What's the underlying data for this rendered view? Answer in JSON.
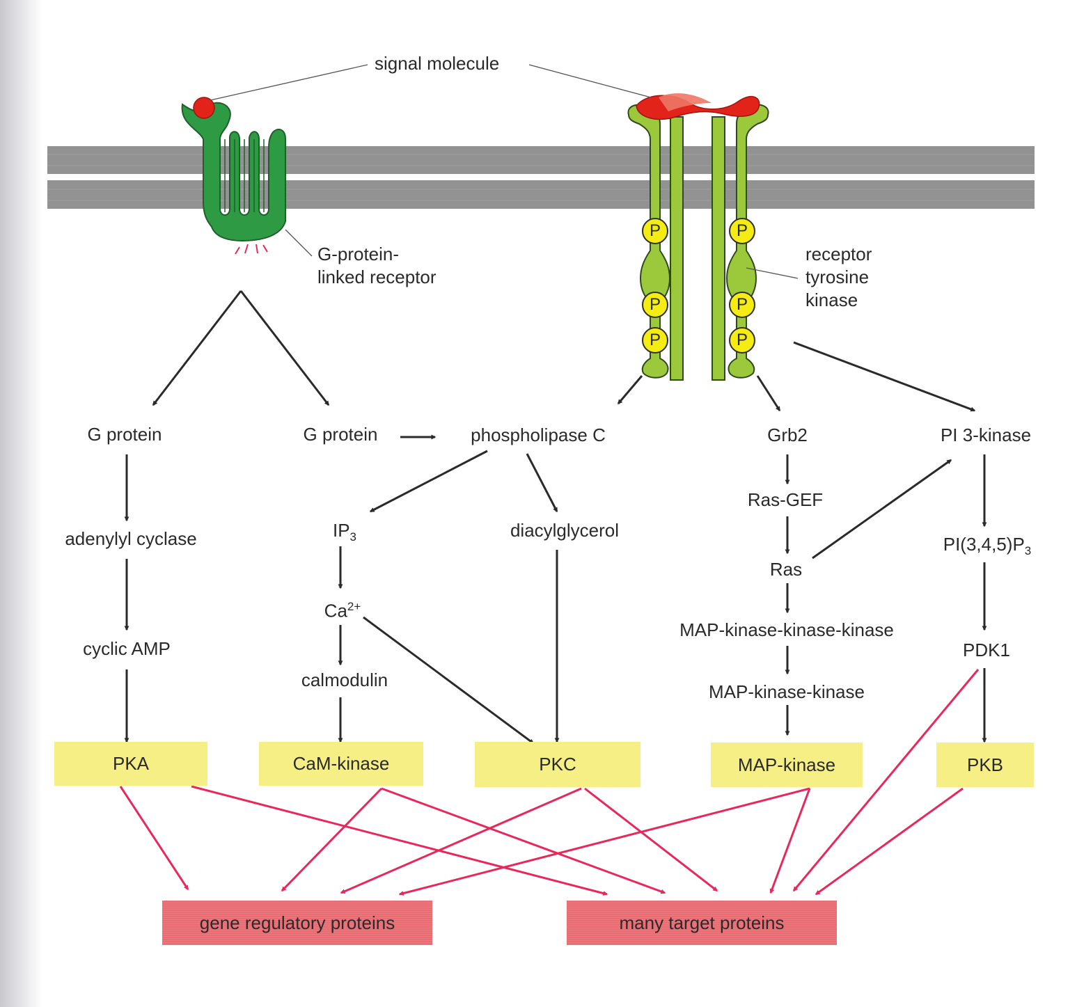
{
  "labels": {
    "signal_molecule": "signal molecule",
    "gpcr_line1": "G-protein-",
    "gpcr_line2": "linked receptor",
    "rtk_line1": "receptor",
    "rtk_line2": "tyrosine",
    "rtk_line3": "kinase",
    "phospho": "P"
  },
  "nodes": {
    "g_protein_1": "G protein",
    "g_protein_2": "G protein",
    "phospholipase_c": "phospholipase C",
    "grb2": "Grb2",
    "pi3_kinase": "PI 3-kinase",
    "adenylyl_cyclase": "adenylyl cyclase",
    "cyclic_amp": "cyclic AMP",
    "ip3_base": "IP",
    "ip3_sub": "3",
    "diacylglycerol": "diacylglycerol",
    "ca_base": "Ca",
    "ca_sup": "2+",
    "calmodulin": "calmodulin",
    "ras_gef": "Ras-GEF",
    "ras": "Ras",
    "mapkkk": "MAP-kinase-kinase-kinase",
    "mapkk": "MAP-kinase-kinase",
    "pip3_base": "PI(3,4,5)P",
    "pip3_sub": "3",
    "pdk1": "PDK1"
  },
  "kinases": {
    "pka": "PKA",
    "camkinase": "CaM-kinase",
    "pkc": "PKC",
    "mapkinase": "MAP-kinase",
    "pkb": "PKB"
  },
  "targets": {
    "gene_regulatory": "gene regulatory proteins",
    "many_targets": "many target proteins"
  },
  "colors": {
    "membrane": "#929292",
    "gpcr": "#2e9a44",
    "rtk": "#9cc83c",
    "signal": "#e2231a",
    "phospho": "#f4ec12",
    "kinase_box": "#f5ef86",
    "target_box": "#e86c72",
    "black_arrow": "#2b2a2a",
    "red_arrow": "#e8285a"
  }
}
